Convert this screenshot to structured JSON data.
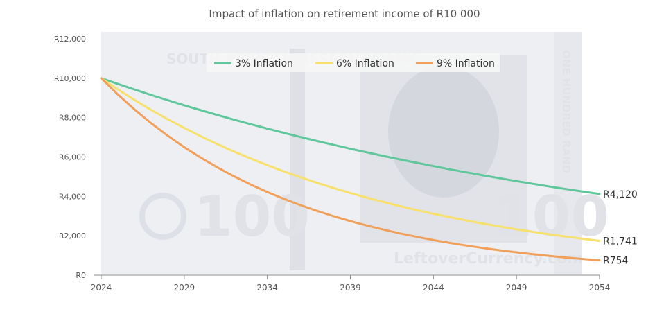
{
  "chart_data": {
    "type": "line",
    "title": "Impact of inflation on retirement income of R10 000",
    "x": [
      2024,
      2025,
      2026,
      2027,
      2028,
      2029,
      2030,
      2031,
      2032,
      2033,
      2034,
      2035,
      2036,
      2037,
      2038,
      2039,
      2040,
      2041,
      2042,
      2043,
      2044,
      2045,
      2046,
      2047,
      2048,
      2049,
      2050,
      2051,
      2052,
      2053,
      2054
    ],
    "x_ticks": [
      "2024",
      "2029",
      "2034",
      "2039",
      "2044",
      "2049",
      "2054"
    ],
    "x_tick_values": [
      2024,
      2029,
      2034,
      2039,
      2044,
      2049,
      2054
    ],
    "y_ticks": [
      "R0",
      "R2,000",
      "R4,000",
      "R6,000",
      "R8,000",
      "R10,000",
      "R12,000"
    ],
    "y_tick_values": [
      0,
      2000,
      4000,
      6000,
      8000,
      10000,
      12000
    ],
    "ylim": [
      0,
      12000
    ],
    "xlim": [
      2024,
      2054
    ],
    "legend_position": "top",
    "series": [
      {
        "name": "3% Inflation",
        "color": "#5fc79b",
        "values": [
          10000,
          9709,
          9426,
          9151,
          8885,
          8626,
          8375,
          8131,
          7894,
          7664,
          7441,
          7224,
          7014,
          6810,
          6611,
          6419,
          6232,
          6050,
          5874,
          5703,
          5537,
          5375,
          5219,
          5067,
          4919,
          4776,
          4637,
          4502,
          4371,
          4243,
          4120
        ],
        "end_label": "R4,120"
      },
      {
        "name": "6% Inflation",
        "color": "#f7e06b",
        "values": [
          10000,
          9434,
          8900,
          8396,
          7921,
          7473,
          7050,
          6651,
          6274,
          5919,
          5584,
          5268,
          4970,
          4688,
          4423,
          4173,
          3936,
          3714,
          3503,
          3305,
          3118,
          2942,
          2775,
          2618,
          2470,
          2330,
          2198,
          2074,
          1956,
          1846,
          1741
        ],
        "end_label": "R1,741"
      },
      {
        "name": "9% Inflation",
        "color": "#f0a05a",
        "values": [
          10000,
          9174,
          8417,
          7722,
          7084,
          6499,
          5963,
          5470,
          5019,
          4604,
          4224,
          3875,
          3555,
          3262,
          2992,
          2745,
          2519,
          2311,
          2120,
          1945,
          1784,
          1637,
          1502,
          1378,
          1264,
          1160,
          1064,
          976,
          895,
          822,
          754
        ],
        "end_label": "R754"
      }
    ],
    "watermark": {
      "header": "SOUTH AFRICAN RESERVE BANK",
      "side": "ONE HUNDRED RAND",
      "denomination": "100",
      "site": "LeftoverCurrency.com"
    }
  }
}
